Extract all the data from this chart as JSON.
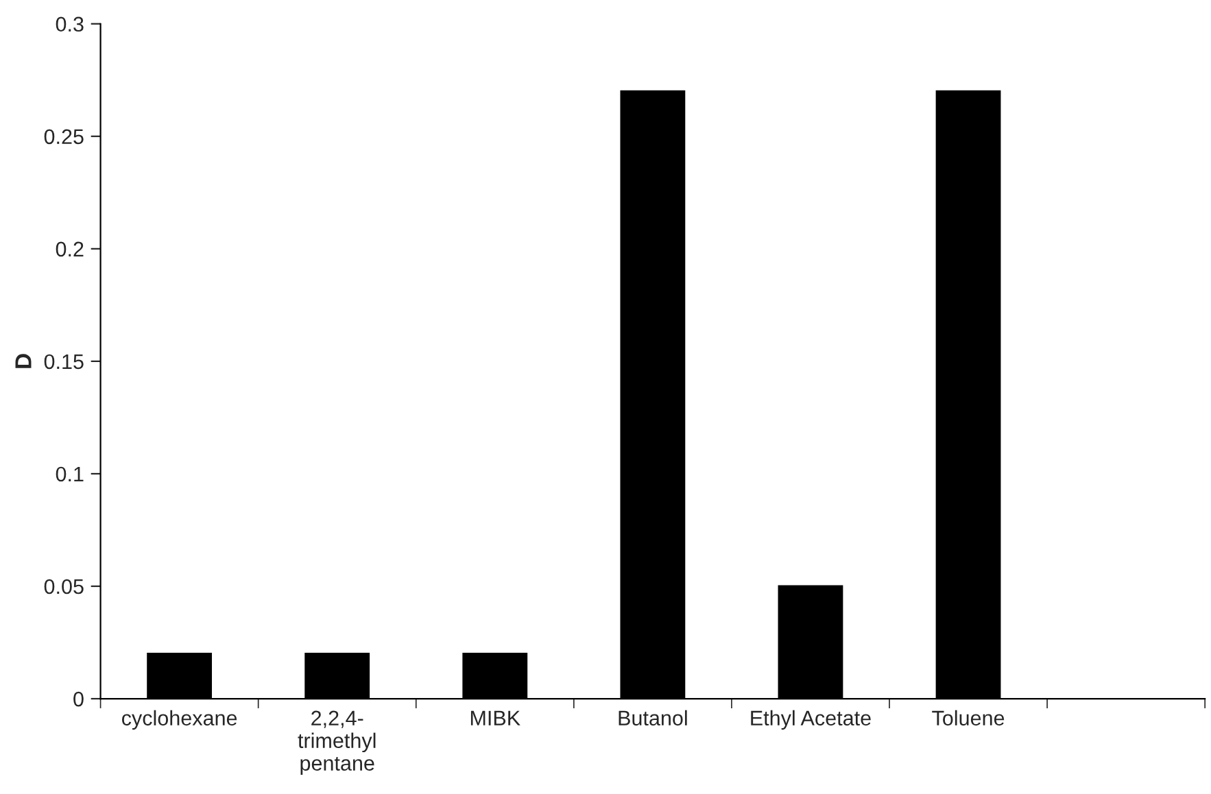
{
  "chart_data": {
    "type": "bar",
    "ylabel": "D",
    "categories": [
      "cyclohexane",
      "2,2,4-trimethyl pentane",
      "MIBK",
      "Butanol",
      "Ethyl Acetate",
      "Toluene",
      null
    ],
    "values": [
      0.02,
      0.02,
      0.02,
      0.27,
      0.05,
      0.27,
      null
    ],
    "color": "#000000",
    "ylim": [
      0,
      0.3
    ],
    "yticks": [
      0,
      0.05,
      0.1,
      0.15,
      0.2,
      0.25,
      0.3
    ],
    "grid": false,
    "legend": false
  }
}
